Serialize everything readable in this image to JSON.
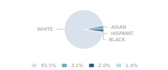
{
  "chart_data": {
    "type": "pie",
    "categories": [
      "WHITE",
      "ASIAN",
      "HISPANIC",
      "BLACK"
    ],
    "values": [
      93.5,
      3.1,
      2.0,
      1.4
    ],
    "value_labels": [
      "93.5%",
      "3.1%",
      "2.0%",
      "1.4%"
    ],
    "colors": [
      "#d9e2ec",
      "#7aaabe",
      "#2e5f7a",
      "#c5d8e6"
    ],
    "legend": "bottom"
  }
}
